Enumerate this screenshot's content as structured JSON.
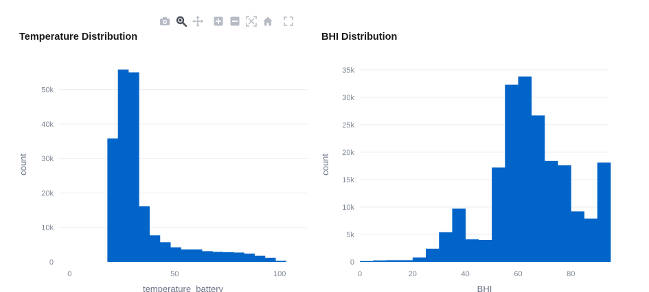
{
  "toolbar": {
    "icons": [
      "camera-icon",
      "zoom-icon",
      "pan-icon",
      "zoom-in-icon",
      "zoom-out-icon",
      "autoscale-icon",
      "reset-axes-icon",
      "fullscreen-icon"
    ],
    "active": "zoom-icon",
    "color": "#b6bbc4",
    "active_color": "#4a4f58"
  },
  "chart_data": [
    {
      "type": "bar",
      "title": "Temperature Distribution",
      "xlabel": "temperature_battery",
      "ylabel": "count",
      "bar_color": "#0164c9",
      "grid": true,
      "xlim": [
        -5,
        113
      ],
      "ylim": [
        0,
        56500
      ],
      "xticks": [
        0,
        50,
        100
      ],
      "yticks": [
        0,
        10000,
        20000,
        30000,
        40000,
        50000
      ],
      "ytick_labels": [
        "0",
        "10k",
        "20k",
        "30k",
        "40k",
        "50k"
      ],
      "bin_start": 18,
      "bin_width": 5,
      "values": [
        35800,
        55800,
        55000,
        16100,
        7700,
        5700,
        4200,
        3600,
        3600,
        3100,
        2900,
        2800,
        2700,
        2400,
        1800,
        1200,
        300
      ]
    },
    {
      "type": "bar",
      "title": "BHI Distribution",
      "xlabel": "BHI",
      "ylabel": "count",
      "bar_color": "#0164c9",
      "grid": true,
      "xlim": [
        0,
        94.5
      ],
      "ylim": [
        0,
        35500
      ],
      "xticks": [
        0,
        20,
        40,
        60,
        80
      ],
      "yticks": [
        0,
        5000,
        10000,
        15000,
        20000,
        25000,
        30000,
        35000
      ],
      "ytick_labels": [
        "0",
        "5k",
        "10k",
        "15k",
        "20k",
        "25k",
        "30k",
        "35k"
      ],
      "bin_start": 0,
      "bin_width": 5,
      "values": [
        150,
        250,
        300,
        300,
        800,
        2400,
        5400,
        9700,
        4100,
        4000,
        17200,
        32300,
        33800,
        26700,
        18400,
        17600,
        9200,
        7900,
        18100
      ]
    }
  ]
}
